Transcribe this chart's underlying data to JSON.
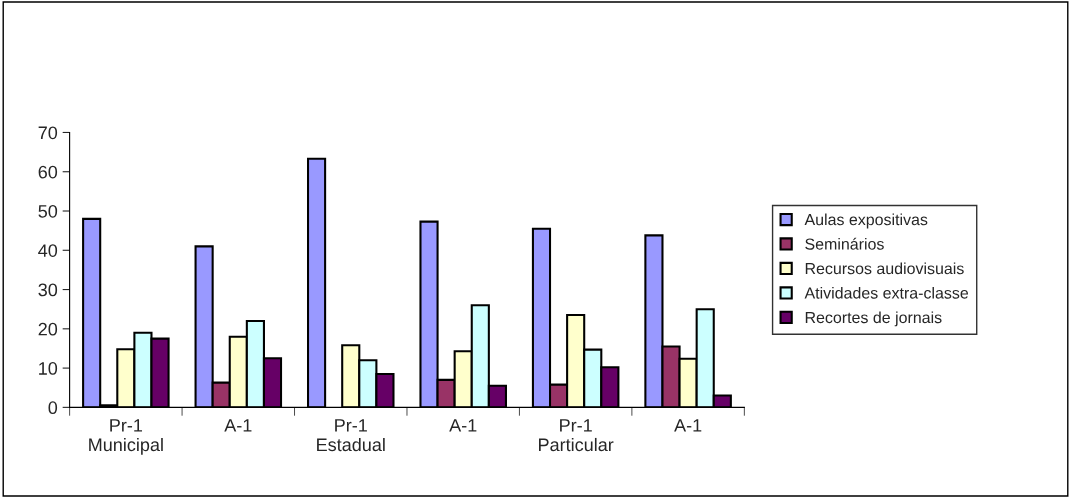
{
  "chart_data": {
    "type": "bar",
    "categories": [
      "Pr-1\nMunicipal",
      "A-1",
      "Pr-1\nEstadual",
      "A-1",
      "Pr-1\nParticular",
      "A-1"
    ],
    "series": [
      {
        "name": "Aulas expositivas",
        "color": "#9999ff",
        "values": [
          48,
          41,
          63.3,
          47.3,
          45.5,
          43.8
        ]
      },
      {
        "name": "Seminários",
        "color": "#993366",
        "values": [
          0.5,
          6.3,
          null,
          7,
          5.8,
          15.5
        ]
      },
      {
        "name": "Recursos audiovisuais",
        "color": "#ffffcc",
        "values": [
          14.8,
          18,
          15.8,
          14.3,
          23.5,
          12.4
        ]
      },
      {
        "name": "Atividades extra-classe",
        "color": "#ccffff",
        "values": [
          19,
          22,
          12,
          26,
          14.7,
          25
        ]
      },
      {
        "name": "Recortes de jornais",
        "color": "#660066",
        "values": [
          17.5,
          12.5,
          8.5,
          5.5,
          10.2,
          3
        ]
      }
    ],
    "ylim": [
      0,
      70
    ],
    "yticks": [
      0,
      10,
      20,
      30,
      40,
      50,
      60,
      70
    ],
    "grid": false,
    "legend": "right"
  }
}
